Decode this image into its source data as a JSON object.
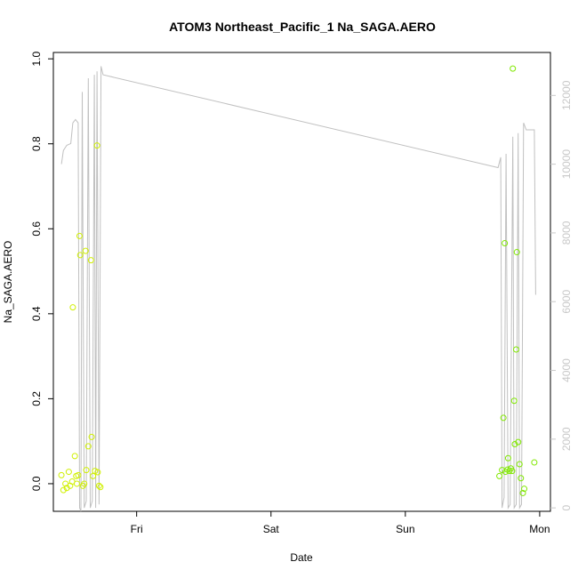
{
  "chart_data": {
    "type": "scatter",
    "title": "ATOM3 Northeast_Pacific_1 Na_SAGA.AERO",
    "xlabel": "Date",
    "ylabel": "Na_SAGA.AERO",
    "x_unit": "days since Thursday 00:00",
    "xlim": [
      0.38,
      4.08
    ],
    "ylim": [
      -0.065,
      1.015
    ],
    "ylim_right": [
      -100,
      13250
    ],
    "x_ticks": [
      {
        "value": 1,
        "label": "Fri"
      },
      {
        "value": 2,
        "label": "Sat"
      },
      {
        "value": 3,
        "label": "Sun"
      },
      {
        "value": 4,
        "label": "Mon"
      }
    ],
    "y_ticks": [
      {
        "value": 0.0,
        "label": "0.0"
      },
      {
        "value": 0.2,
        "label": "0.2"
      },
      {
        "value": 0.4,
        "label": "0.4"
      },
      {
        "value": 0.6,
        "label": "0.6"
      },
      {
        "value": 0.8,
        "label": "0.8"
      },
      {
        "value": 1.0,
        "label": "1.0"
      }
    ],
    "y_ticks_right": [
      {
        "value": 0,
        "label": "0"
      },
      {
        "value": 2000,
        "label": "2000"
      },
      {
        "value": 4000,
        "label": "4000"
      },
      {
        "value": 6000,
        "label": "6000"
      },
      {
        "value": 8000,
        "label": "8000"
      },
      {
        "value": 10000,
        "label": "10000"
      },
      {
        "value": 12000,
        "label": "12000"
      }
    ],
    "grid": false,
    "colors": {
      "point_early": "#d0f000",
      "point_late": "#80e800",
      "altitude_line": "#c0c0c0",
      "axis": "#000000",
      "right_axis": "#c8c8c8"
    },
    "points": [
      {
        "x": 0.44,
        "y": 0.02
      },
      {
        "x": 0.455,
        "y": -0.015
      },
      {
        "x": 0.47,
        "y": 0.0
      },
      {
        "x": 0.48,
        "y": -0.01
      },
      {
        "x": 0.495,
        "y": 0.028
      },
      {
        "x": 0.505,
        "y": -0.005
      },
      {
        "x": 0.52,
        "y": 0.005
      },
      {
        "x": 0.525,
        "y": 0.415
      },
      {
        "x": 0.54,
        "y": 0.065
      },
      {
        "x": 0.55,
        "y": 0.018
      },
      {
        "x": 0.555,
        "y": 0.0
      },
      {
        "x": 0.565,
        "y": 0.02
      },
      {
        "x": 0.575,
        "y": 0.583
      },
      {
        "x": 0.58,
        "y": 0.538
      },
      {
        "x": 0.6,
        "y": -0.005
      },
      {
        "x": 0.61,
        "y": 0.0
      },
      {
        "x": 0.62,
        "y": 0.548
      },
      {
        "x": 0.625,
        "y": 0.032
      },
      {
        "x": 0.64,
        "y": 0.088
      },
      {
        "x": 0.66,
        "y": 0.526
      },
      {
        "x": 0.665,
        "y": 0.11
      },
      {
        "x": 0.675,
        "y": 0.018
      },
      {
        "x": 0.69,
        "y": 0.03
      },
      {
        "x": 0.705,
        "y": 0.796
      },
      {
        "x": 0.71,
        "y": 0.027
      },
      {
        "x": 0.72,
        "y": -0.005
      },
      {
        "x": 0.73,
        "y": -0.008
      },
      {
        "x": 3.7,
        "y": 0.018
      },
      {
        "x": 3.72,
        "y": 0.032
      },
      {
        "x": 3.73,
        "y": 0.155
      },
      {
        "x": 3.74,
        "y": 0.566
      },
      {
        "x": 3.745,
        "y": 0.028
      },
      {
        "x": 3.76,
        "y": 0.033
      },
      {
        "x": 3.765,
        "y": 0.06
      },
      {
        "x": 3.775,
        "y": 0.03
      },
      {
        "x": 3.785,
        "y": 0.036
      },
      {
        "x": 3.795,
        "y": 0.03
      },
      {
        "x": 3.8,
        "y": 0.977
      },
      {
        "x": 3.81,
        "y": 0.195
      },
      {
        "x": 3.815,
        "y": 0.093
      },
      {
        "x": 3.825,
        "y": 0.316
      },
      {
        "x": 3.83,
        "y": 0.545
      },
      {
        "x": 3.84,
        "y": 0.098
      },
      {
        "x": 3.85,
        "y": 0.046
      },
      {
        "x": 3.86,
        "y": 0.013
      },
      {
        "x": 3.875,
        "y": -0.022
      },
      {
        "x": 3.885,
        "y": -0.012
      },
      {
        "x": 3.96,
        "y": 0.05
      }
    ],
    "altitude_series": [
      [
        0.44,
        10000
      ],
      [
        0.455,
        10400
      ],
      [
        0.48,
        10550
      ],
      [
        0.51,
        10600
      ],
      [
        0.525,
        11200
      ],
      [
        0.545,
        11300
      ],
      [
        0.565,
        11200
      ],
      [
        0.575,
        0
      ],
      [
        0.585,
        -100
      ],
      [
        0.595,
        12100
      ],
      [
        0.61,
        0
      ],
      [
        0.625,
        200
      ],
      [
        0.64,
        12500
      ],
      [
        0.655,
        0
      ],
      [
        0.67,
        200
      ],
      [
        0.685,
        12600
      ],
      [
        0.695,
        0
      ],
      [
        0.705,
        12700
      ],
      [
        0.72,
        100
      ],
      [
        0.735,
        12850
      ],
      [
        0.75,
        12600
      ],
      [
        3.69,
        9900
      ],
      [
        3.71,
        10200
      ],
      [
        3.72,
        0
      ],
      [
        3.735,
        300
      ],
      [
        3.75,
        10300
      ],
      [
        3.765,
        0
      ],
      [
        3.78,
        100
      ],
      [
        3.8,
        10800
      ],
      [
        3.81,
        0
      ],
      [
        3.825,
        100
      ],
      [
        3.84,
        10900
      ],
      [
        3.85,
        0
      ],
      [
        3.865,
        100
      ],
      [
        3.88,
        11200
      ],
      [
        3.9,
        11000
      ],
      [
        3.96,
        11000
      ],
      [
        3.97,
        6200
      ]
    ]
  }
}
